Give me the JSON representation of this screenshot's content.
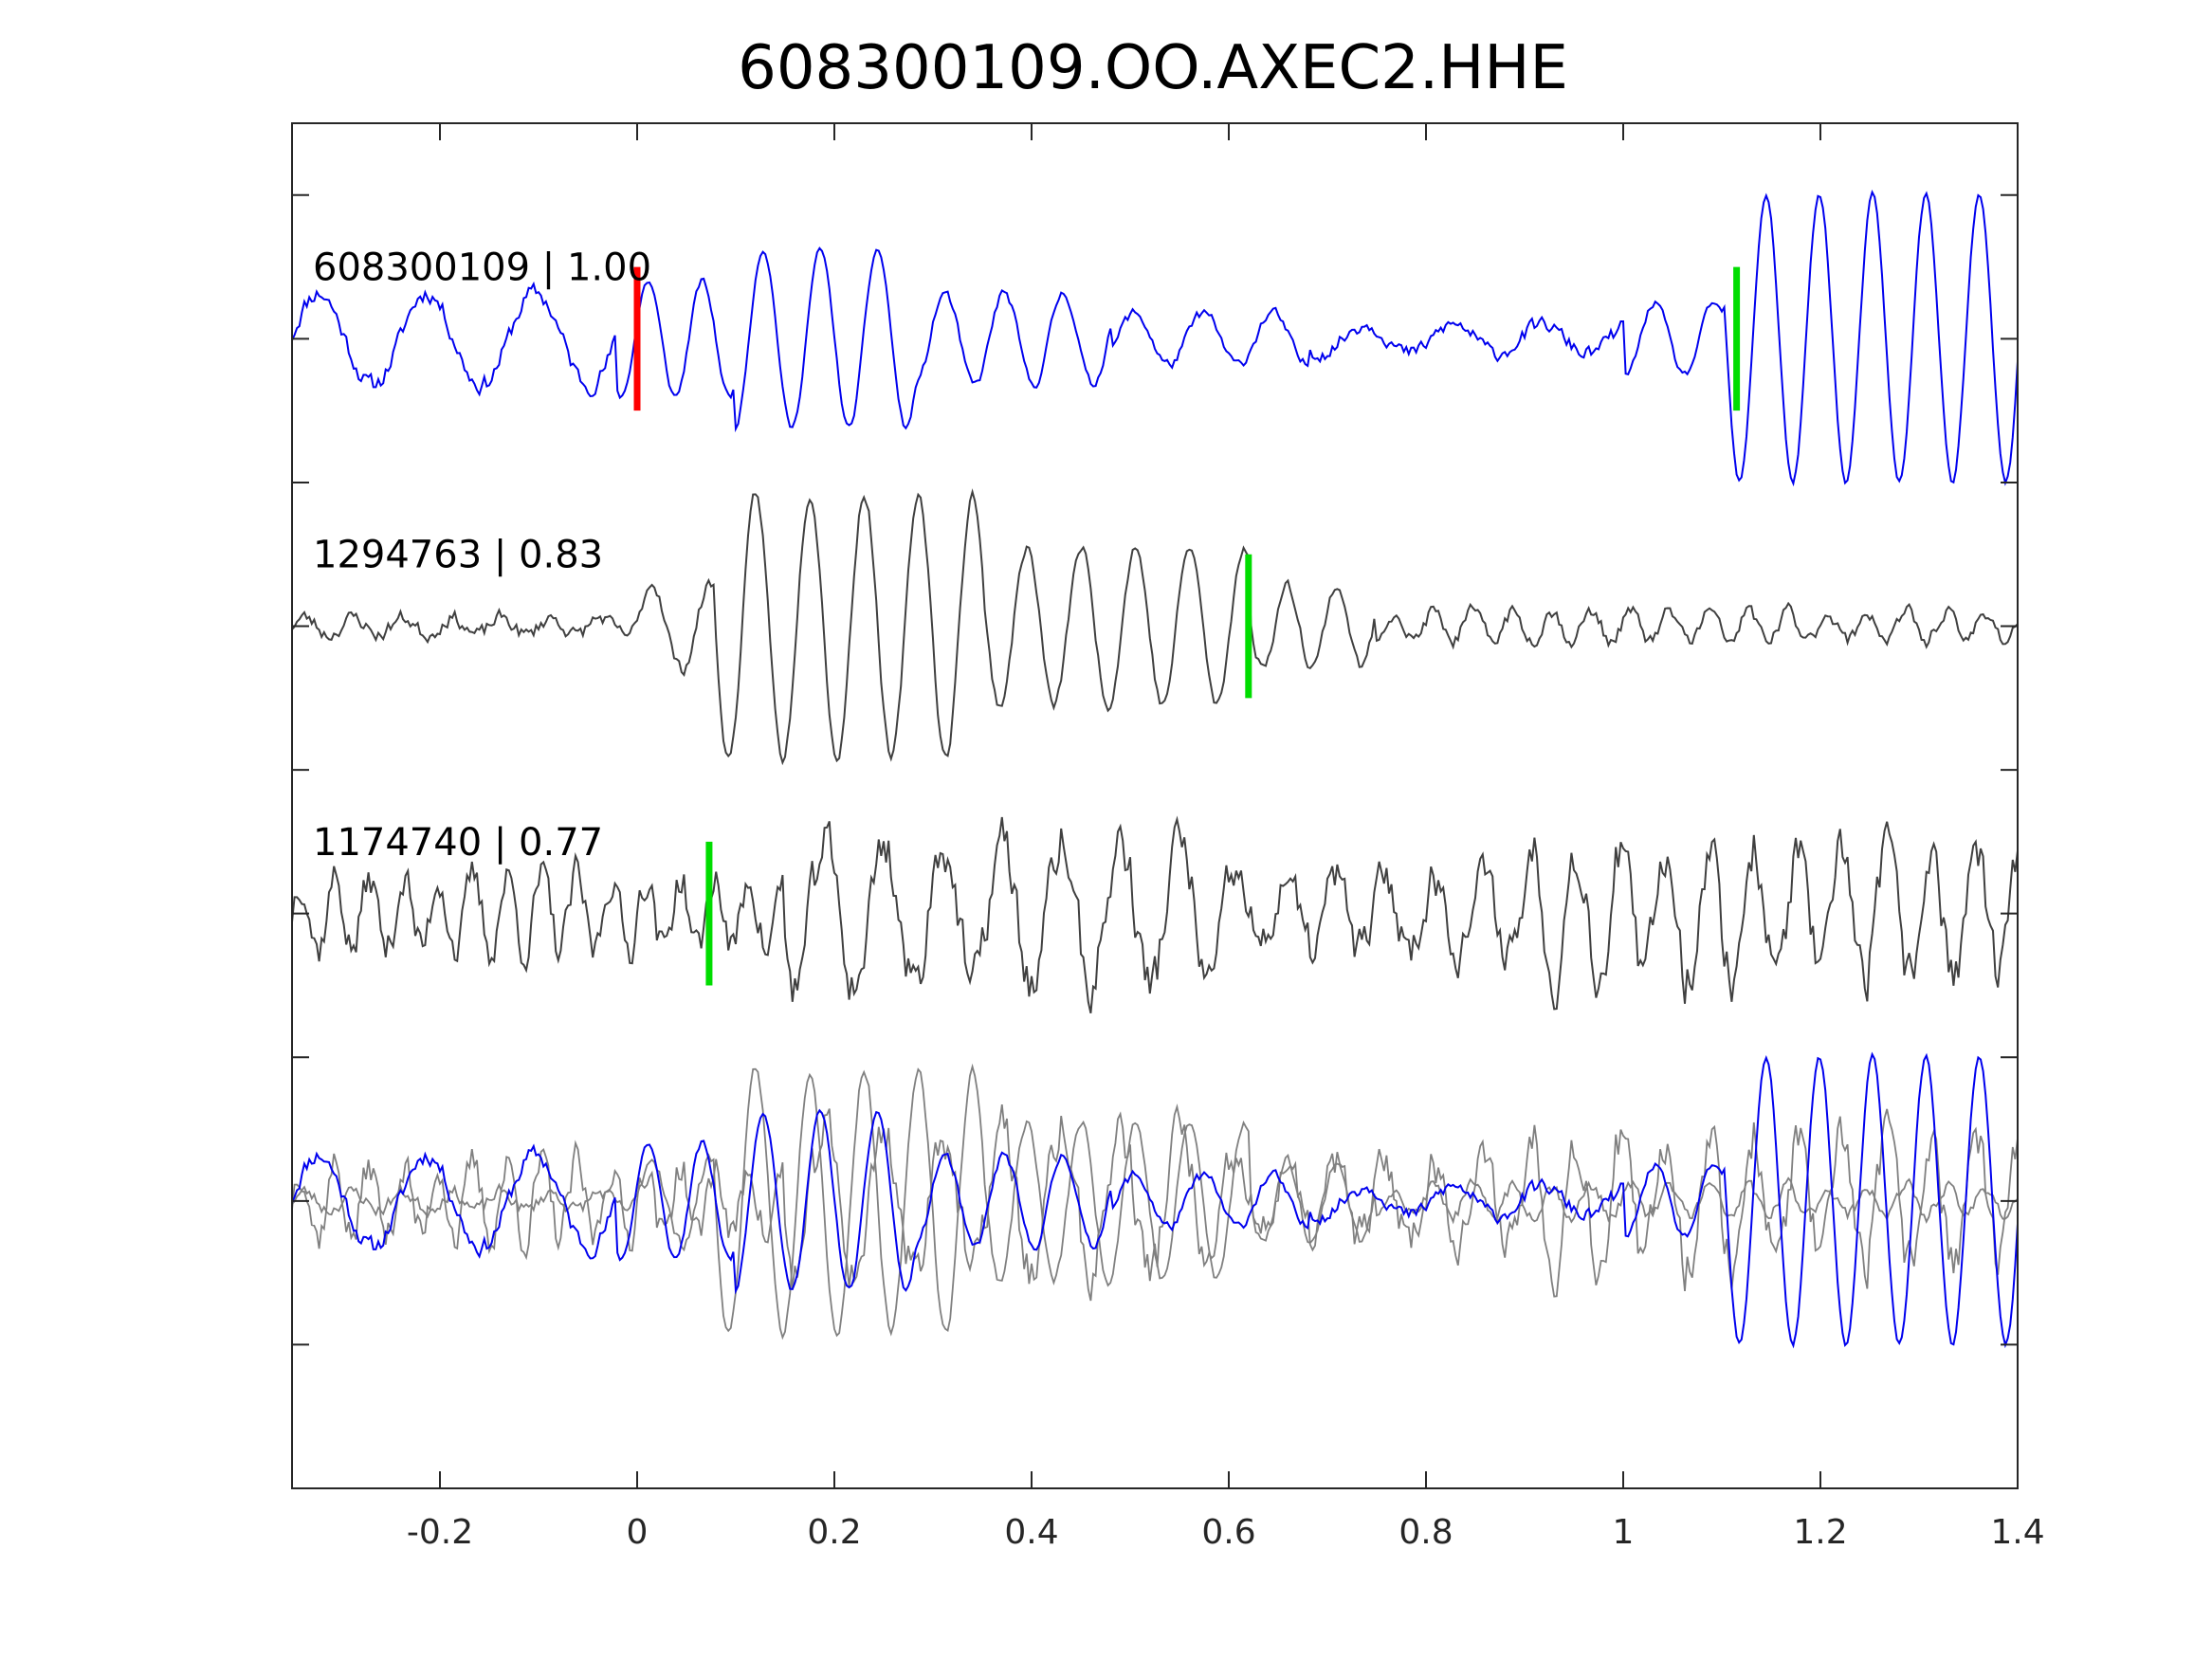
{
  "chart_data": {
    "type": "line",
    "title": "608300109.OO.AXEC2.HHE",
    "xlim": [
      -0.35,
      1.4
    ],
    "xticks": [
      -0.2,
      0,
      0.2,
      0.4,
      0.6,
      0.8,
      1,
      1.2,
      1.4
    ],
    "xtick_labels": [
      "-0.2",
      "0",
      "0.2",
      "0.4",
      "0.6",
      "0.8",
      "1",
      "1.2",
      "1.4"
    ],
    "ylim": [
      -0.5,
      9
    ],
    "yticks": [
      0.5,
      1.5,
      2.5,
      3.5,
      4.5,
      5.5,
      6.5,
      7.5,
      8.5
    ],
    "grid": false,
    "colors": {
      "master": "#0000ee",
      "correlated": "#404040",
      "overlay": "#808080",
      "pick_red": "#ff0000",
      "pick_green": "#00dd00",
      "axes": "#262626"
    },
    "traces": [
      {
        "label": "608300109 | 1.00",
        "offset": 7.5,
        "color": "#0000ee",
        "waveform": {
          "seed": 11,
          "segments": [
            {
              "from": -0.35,
              "to": -0.02,
              "amp": 0.32,
              "period": 0.11,
              "noise": 0.1,
              "phase": 1.2
            },
            {
              "from": -0.02,
              "to": 0.1,
              "amp": 0.4,
              "period": 0.055,
              "noise": 0.04,
              "phase": 0.3
            },
            {
              "from": 0.1,
              "to": 0.28,
              "amp": 0.62,
              "period": 0.058,
              "noise": 0.03,
              "phase": 0.3
            },
            {
              "from": 0.28,
              "to": 0.48,
              "amp": 0.32,
              "period": 0.06,
              "noise": 0.05,
              "phase": 0.3
            },
            {
              "from": 0.48,
              "to": 0.68,
              "amp": 0.18,
              "period": 0.07,
              "noise": 0.06,
              "phase": 0.3
            },
            {
              "from": 0.68,
              "to": 1.0,
              "amp": 0.1,
              "period": 0.09,
              "noise": 0.08,
              "phase": 0.3
            },
            {
              "from": 1.0,
              "to": 1.1,
              "amp": 0.25,
              "period": 0.06,
              "noise": 0.04,
              "phase": 0.3
            },
            {
              "from": 1.1,
              "to": 1.4,
              "amp": 1.0,
              "period": 0.054,
              "noise": 0.03,
              "phase": 0.3
            }
          ]
        },
        "picks": [
          {
            "x": 0.0,
            "color": "#ff0000"
          },
          {
            "x": 1.115,
            "color": "#00dd00"
          }
        ]
      },
      {
        "label": "1294763 | 0.83",
        "offset": 5.5,
        "color": "#404040",
        "waveform": {
          "seed": 23,
          "segments": [
            {
              "from": -0.35,
              "to": 0.0,
              "amp": 0.06,
              "period": 0.05,
              "noise": 0.08,
              "phase": 0.0
            },
            {
              "from": 0.0,
              "to": 0.08,
              "amp": 0.3,
              "period": 0.06,
              "noise": 0.08,
              "phase": 0.0
            },
            {
              "from": 0.08,
              "to": 0.35,
              "amp": 0.92,
              "period": 0.055,
              "noise": 0.06,
              "phase": 0.4
            },
            {
              "from": 0.35,
              "to": 0.62,
              "amp": 0.55,
              "period": 0.055,
              "noise": 0.06,
              "phase": 0.4
            },
            {
              "from": 0.62,
              "to": 0.75,
              "amp": 0.28,
              "period": 0.05,
              "noise": 0.06,
              "phase": 0.4
            },
            {
              "from": 0.75,
              "to": 1.4,
              "amp": 0.1,
              "period": 0.04,
              "noise": 0.08,
              "phase": 0.4
            }
          ]
        },
        "picks": [
          {
            "x": 0.62,
            "color": "#00dd00"
          }
        ]
      },
      {
        "label": "1174740 | 0.77",
        "offset": 3.5,
        "color": "#404040",
        "waveform": {
          "seed": 37,
          "segments": [
            {
              "from": -0.35,
              "to": 0.15,
              "amp": 0.25,
              "period": 0.035,
              "noise": 0.22,
              "phase": 0.0
            },
            {
              "from": 0.15,
              "to": 0.6,
              "amp": 0.5,
              "period": 0.06,
              "noise": 0.3,
              "phase": 0.5
            },
            {
              "from": 0.6,
              "to": 0.9,
              "amp": 0.25,
              "period": 0.05,
              "noise": 0.25,
              "phase": 0.5
            },
            {
              "from": 0.9,
              "to": 1.4,
              "amp": 0.45,
              "period": 0.045,
              "noise": 0.3,
              "phase": 0.5
            }
          ]
        },
        "picks": [
          {
            "x": 0.073,
            "color": "#00dd00"
          }
        ]
      }
    ],
    "overlay": {
      "offset": 1.5,
      "source_traces": [
        0,
        1,
        2
      ],
      "shifts": [
        0,
        0,
        0
      ]
    }
  }
}
